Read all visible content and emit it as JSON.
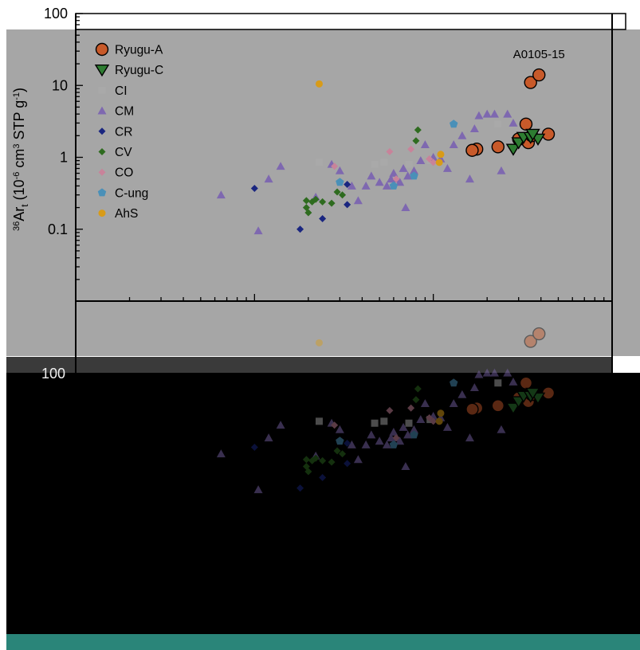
{
  "chart_data": {
    "type": "scatter",
    "title": "",
    "xlabel": "",
    "ylabel": "36Art (10-6 cm3 STP g-1)",
    "ylabel_parts": {
      "sup": "36",
      "main": "Ar",
      "sub": "t",
      "unit_open": " (10",
      "unit_exp1": "-6",
      "unit_mid": " cm",
      "unit_exp2": "3",
      "unit_mid2": " STP g",
      "unit_exp3": "-1",
      "unit_close": ")"
    },
    "y_scale": "log",
    "x_scale": "log",
    "ylim": [
      0.01,
      100
    ],
    "xlim": [
      1,
      1000
    ],
    "y_ticks": [
      {
        "value": 100,
        "label": "100"
      },
      {
        "value": 10,
        "label": "10"
      },
      {
        "value": 1,
        "label": "1"
      },
      {
        "value": 0.1,
        "label": "0.1"
      }
    ],
    "legend_position": "top-left",
    "annotations": [
      {
        "text": "A0105-15",
        "x": 390,
        "y": 24
      }
    ],
    "series": [
      {
        "name": "Ryugu-A",
        "marker": "circle-large",
        "color": "#c85a2a",
        "points": [
          [
            350,
            11
          ],
          [
            390,
            14
          ],
          [
            320,
            1.8
          ],
          [
            330,
            2.9
          ],
          [
            340,
            1.6
          ],
          [
            300,
            1.8
          ],
          [
            175,
            1.3
          ],
          [
            165,
            1.25
          ],
          [
            230,
            1.4
          ],
          [
            440,
            2.1
          ],
          [
            355,
            2.0
          ]
        ]
      },
      {
        "name": "Ryugu-C",
        "marker": "triangle-down-large",
        "color": "#2e7d32",
        "points": [
          [
            280,
            1.3
          ],
          [
            300,
            1.6
          ],
          [
            320,
            1.9
          ],
          [
            350,
            1.9
          ],
          [
            385,
            1.8
          ],
          [
            360,
            2.1
          ]
        ]
      },
      {
        "name": "CI",
        "marker": "square",
        "color": "#a9a9a9",
        "points": [
          [
            23,
            0.85
          ],
          [
            47,
            0.8
          ],
          [
            53,
            0.85
          ],
          [
            73,
            0.8
          ],
          [
            96,
            0.9
          ],
          [
            230,
            2.9
          ]
        ]
      },
      {
        "name": "CM",
        "marker": "triangle-up",
        "color": "#7e68b0",
        "points": [
          [
            6.5,
            0.3
          ],
          [
            10.5,
            0.095
          ],
          [
            12,
            0.5
          ],
          [
            14,
            0.75
          ],
          [
            22,
            0.28
          ],
          [
            27,
            0.8
          ],
          [
            30,
            0.65
          ],
          [
            35,
            0.4
          ],
          [
            38,
            0.25
          ],
          [
            42,
            0.4
          ],
          [
            45,
            0.55
          ],
          [
            50,
            0.45
          ],
          [
            55,
            0.4
          ],
          [
            58,
            0.5
          ],
          [
            60,
            0.6
          ],
          [
            62,
            0.5
          ],
          [
            65,
            0.45
          ],
          [
            68,
            0.7
          ],
          [
            70,
            0.2
          ],
          [
            72,
            0.55
          ],
          [
            78,
            0.65
          ],
          [
            85,
            0.9
          ],
          [
            90,
            1.5
          ],
          [
            100,
            1.0
          ],
          [
            110,
            0.95
          ],
          [
            120,
            0.7
          ],
          [
            130,
            1.5
          ],
          [
            145,
            2.0
          ],
          [
            160,
            0.5
          ],
          [
            170,
            2.5
          ],
          [
            180,
            3.8
          ],
          [
            200,
            4.0
          ],
          [
            220,
            4.0
          ],
          [
            240,
            0.65
          ],
          [
            260,
            4.0
          ],
          [
            280,
            3.0
          ]
        ]
      },
      {
        "name": "CR",
        "marker": "diamond",
        "color": "#1a2680",
        "points": [
          [
            10,
            0.37
          ],
          [
            18,
            0.1
          ],
          [
            24,
            0.14
          ],
          [
            33,
            0.42
          ],
          [
            33,
            0.22
          ]
        ]
      },
      {
        "name": "CV",
        "marker": "diamond",
        "color": "#2e6b1f",
        "points": [
          [
            19.5,
            0.25
          ],
          [
            19.5,
            0.2
          ],
          [
            20,
            0.17
          ],
          [
            21,
            0.24
          ],
          [
            22,
            0.26
          ],
          [
            24,
            0.24
          ],
          [
            27,
            0.23
          ],
          [
            29,
            0.33
          ],
          [
            31,
            0.3
          ],
          [
            80,
            1.7
          ],
          [
            82,
            2.4
          ]
        ]
      },
      {
        "name": "CO",
        "marker": "diamond",
        "color": "#c8839a",
        "points": [
          [
            28,
            0.75
          ],
          [
            57,
            1.2
          ],
          [
            62,
            0.5
          ],
          [
            75,
            1.3
          ],
          [
            95,
            0.95
          ],
          [
            100,
            0.85
          ]
        ]
      },
      {
        "name": "C-ung",
        "marker": "pentagon",
        "color": "#4a90b8",
        "points": [
          [
            30,
            0.45
          ],
          [
            60,
            0.4
          ],
          [
            78,
            0.55
          ],
          [
            130,
            2.9
          ]
        ]
      },
      {
        "name": "AhS",
        "marker": "circle",
        "color": "#d89b18",
        "points": [
          [
            23,
            10.5
          ],
          [
            110,
            1.1
          ],
          [
            108,
            0.85
          ]
        ]
      }
    ]
  }
}
